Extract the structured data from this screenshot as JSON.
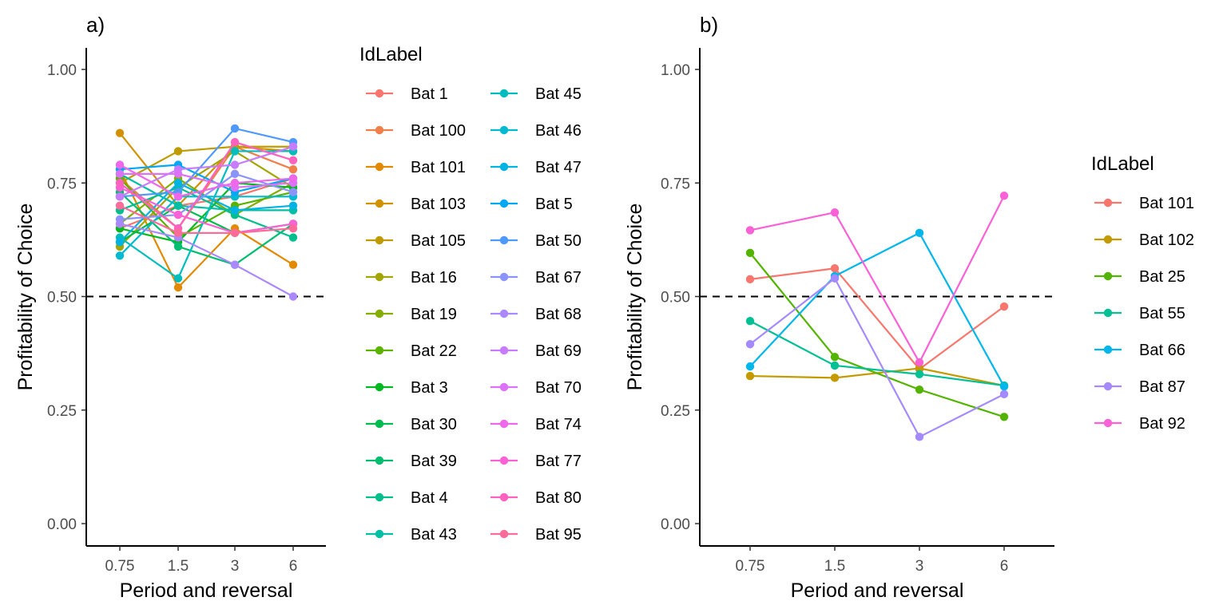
{
  "chart_data": [
    {
      "type": "line",
      "panel_label": "a)",
      "xlabel": "Period and reversal",
      "ylabel": "Profitability of Choice",
      "categories": [
        "0.75",
        "1.5",
        "3",
        "6"
      ],
      "ylim": [
        0,
        1
      ],
      "yticks": [
        "0.00",
        "0.25",
        "0.50",
        "0.75",
        "1.00"
      ],
      "reference_line": 0.5,
      "legend_title": "IdLabel",
      "legend_position": "right",
      "grid": false,
      "series": [
        {
          "name": "Bat 1",
          "color": "#F8766D",
          "values": [
            0.65,
            0.7,
            0.72,
            0.76
          ]
        },
        {
          "name": "Bat 100",
          "color": "#F07F49",
          "values": [
            0.76,
            0.65,
            0.83,
            0.78
          ]
        },
        {
          "name": "Bat 101",
          "color": "#E38900",
          "values": [
            0.78,
            0.52,
            0.65,
            0.57
          ]
        },
        {
          "name": "Bat 103",
          "color": "#D29200",
          "values": [
            0.86,
            0.7,
            0.83,
            0.82
          ]
        },
        {
          "name": "Bat 105",
          "color": "#BE9C00",
          "values": [
            0.75,
            0.82,
            0.83,
            0.83
          ]
        },
        {
          "name": "Bat 16",
          "color": "#A3A500",
          "values": [
            0.61,
            0.74,
            0.82,
            0.74
          ]
        },
        {
          "name": "Bat 19",
          "color": "#84AD00",
          "values": [
            0.66,
            0.76,
            0.68,
            0.75
          ]
        },
        {
          "name": "Bat 22",
          "color": "#5BB300",
          "values": [
            0.76,
            0.63,
            0.7,
            0.73
          ]
        },
        {
          "name": "Bat 3",
          "color": "#00B81F",
          "values": [
            0.65,
            0.62,
            0.75,
            0.74
          ]
        },
        {
          "name": "Bat 30",
          "color": "#00BB4E",
          "values": [
            0.62,
            0.7,
            0.64,
            0.66
          ]
        },
        {
          "name": "Bat 39",
          "color": "#00BD6F",
          "values": [
            0.73,
            0.61,
            0.57,
            0.66
          ]
        },
        {
          "name": "Bat 4",
          "color": "#00BF8C",
          "values": [
            0.69,
            0.74,
            0.68,
            0.63
          ]
        },
        {
          "name": "Bat 43",
          "color": "#00BFA5",
          "values": [
            0.77,
            0.7,
            0.69,
            0.69
          ]
        },
        {
          "name": "Bat 45",
          "color": "#00BDBD",
          "values": [
            0.63,
            0.54,
            0.82,
            0.82
          ]
        },
        {
          "name": "Bat 46",
          "color": "#00BAD2",
          "values": [
            0.59,
            0.72,
            0.72,
            0.72
          ]
        },
        {
          "name": "Bat 47",
          "color": "#00B3E4",
          "values": [
            0.62,
            0.75,
            0.69,
            0.7
          ]
        },
        {
          "name": "Bat 5",
          "color": "#00A8F4",
          "values": [
            0.78,
            0.79,
            0.73,
            0.76
          ]
        },
        {
          "name": "Bat 50",
          "color": "#4E99FF",
          "values": [
            0.72,
            0.73,
            0.87,
            0.84
          ]
        },
        {
          "name": "Bat 67",
          "color": "#8B93FF",
          "values": [
            0.67,
            0.68,
            0.77,
            0.73
          ]
        },
        {
          "name": "Bat 68",
          "color": "#AC88FF",
          "values": [
            0.66,
            0.63,
            0.57,
            0.5
          ]
        },
        {
          "name": "Bat 69",
          "color": "#C77CFF",
          "values": [
            0.72,
            0.78,
            0.79,
            0.83
          ]
        },
        {
          "name": "Bat 70",
          "color": "#DC71FA",
          "values": [
            0.77,
            0.77,
            0.74,
            0.75
          ]
        },
        {
          "name": "Bat 74",
          "color": "#EF67EB",
          "values": [
            0.79,
            0.72,
            0.75,
            0.76
          ]
        },
        {
          "name": "Bat 77",
          "color": "#FA62D6",
          "values": [
            0.74,
            0.68,
            0.64,
            0.66
          ]
        },
        {
          "name": "Bat 80",
          "color": "#FF61BF",
          "values": [
            0.75,
            0.65,
            0.84,
            0.8
          ]
        },
        {
          "name": "Bat 95",
          "color": "#FD6B98",
          "values": [
            0.7,
            0.64,
            0.64,
            0.65
          ]
        }
      ]
    },
    {
      "type": "line",
      "panel_label": "b)",
      "xlabel": "Period and reversal",
      "ylabel": "Profitability of Choice",
      "categories": [
        "0.75",
        "1.5",
        "3",
        "6"
      ],
      "ylim": [
        0,
        1
      ],
      "yticks": [
        "0.00",
        "0.25",
        "0.50",
        "0.75",
        "1.00"
      ],
      "reference_line": 0.5,
      "legend_title": "IdLabel",
      "legend_position": "right",
      "grid": false,
      "series": [
        {
          "name": "Bat 101",
          "color": "#F8766D",
          "values": [
            0.538,
            0.562,
            0.34,
            0.478
          ]
        },
        {
          "name": "Bat 102",
          "color": "#C49A00",
          "values": [
            0.325,
            0.321,
            0.342,
            0.304
          ]
        },
        {
          "name": "Bat 25",
          "color": "#53B400",
          "values": [
            0.596,
            0.367,
            0.295,
            0.235
          ]
        },
        {
          "name": "Bat 55",
          "color": "#00C094",
          "values": [
            0.446,
            0.348,
            0.329,
            0.304
          ]
        },
        {
          "name": "Bat 66",
          "color": "#00B6EB",
          "values": [
            0.346,
            0.545,
            0.64,
            0.302
          ]
        },
        {
          "name": "Bat 87",
          "color": "#A58AFF",
          "values": [
            0.395,
            0.54,
            0.191,
            0.285
          ]
        },
        {
          "name": "Bat 92",
          "color": "#FB61D7",
          "values": [
            0.646,
            0.685,
            0.355,
            0.722
          ]
        }
      ]
    }
  ]
}
